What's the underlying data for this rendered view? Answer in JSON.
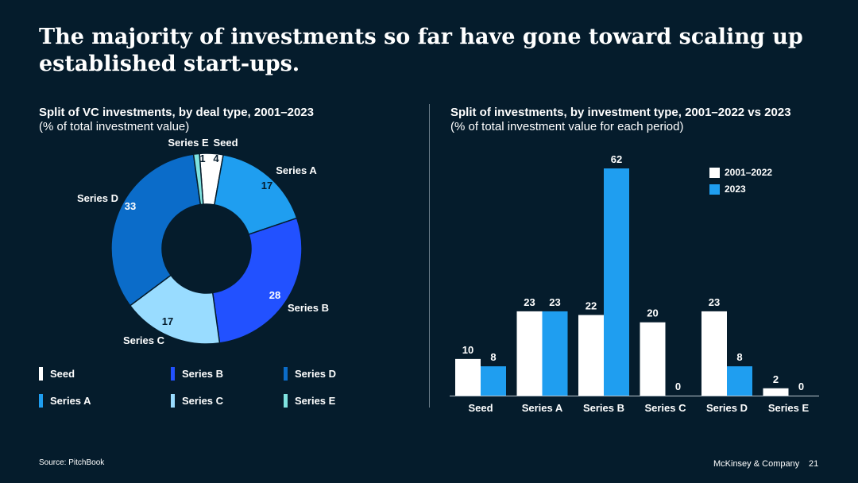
{
  "title": "The majority of investments so far have gone toward scaling up established start-ups.",
  "left": {
    "heading": "Split of VC investments, by deal type, 2001–2023",
    "subheading": "(% of total investment value)"
  },
  "right": {
    "heading": "Split of investments, by investment type, 2001–2022 vs 2023",
    "subheading": "(% of total investment value for each period)"
  },
  "chart_data": [
    {
      "type": "pie",
      "variant": "donut",
      "title": "Split of VC investments, by deal type, 2001–2023",
      "subtitle": "(% of total investment value)",
      "slices": [
        {
          "label": "Seed",
          "value": 4,
          "color": "#ffffff"
        },
        {
          "label": "Series A",
          "value": 17,
          "color": "#1f9ef0"
        },
        {
          "label": "Series B",
          "value": 28,
          "color": "#2251ff"
        },
        {
          "label": "Series C",
          "value": 17,
          "color": "#99dcff"
        },
        {
          "label": "Series D",
          "value": 33,
          "color": "#0b6cc9"
        },
        {
          "label": "Series E",
          "value": 1,
          "color": "#7fe3e0"
        }
      ],
      "legend": [
        "Seed",
        "Series B",
        "Series D",
        "Series A",
        "Series C",
        "Series E"
      ]
    },
    {
      "type": "bar",
      "title": "Split of investments, by investment type, 2001–2022 vs 2023",
      "subtitle": "(% of total investment value for each period)",
      "categories": [
        "Seed",
        "Series A",
        "Series B",
        "Series C",
        "Series D",
        "Series E"
      ],
      "series": [
        {
          "name": "2001–2022",
          "values": [
            10,
            23,
            22,
            20,
            23,
            2
          ],
          "color": "#ffffff"
        },
        {
          "name": "2023",
          "values": [
            8,
            23,
            62,
            0,
            8,
            0
          ],
          "color": "#1f9ef0"
        }
      ],
      "ylim": [
        0,
        62
      ],
      "legend_position": "top-right"
    }
  ],
  "footer": {
    "source": "Source: PitchBook",
    "brand": "McKinsey & Company",
    "page": "21"
  }
}
